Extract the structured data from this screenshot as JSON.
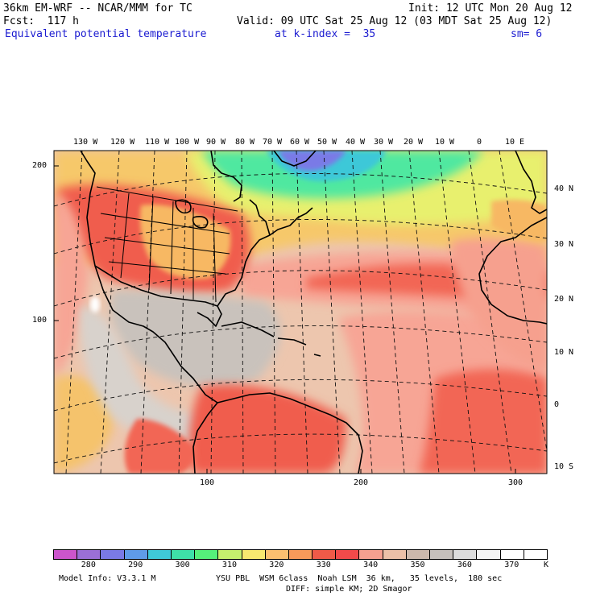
{
  "header": {
    "model_line": "36km EM-WRF -- NCAR/MMM for TC",
    "init_line": "Init: 12 UTC Mon 20 Aug 12",
    "fcst_line": "Fcst:  117 h",
    "valid_line": "Valid: 09 UTC Sat 25 Aug 12 (03 MDT Sat 25 Aug 12)",
    "field_name": "Equivalent potential temperature",
    "level_text": "at k-index =  35",
    "smoothing_text": "sm= 6"
  },
  "map": {
    "lon_labels": [
      "130 W",
      "120 W",
      "110 W",
      "100 W",
      "90 W",
      "80 W",
      "70 W",
      "60 W",
      "50 W",
      "40 W",
      "30 W",
      "20 W",
      "10 W",
      "0",
      "10 E"
    ],
    "lat_labels": [
      "40 N",
      "30 N",
      "20 N",
      "10 N",
      "0",
      "10 S"
    ],
    "y_grid_labels": [
      "200",
      "100"
    ],
    "x_grid_labels": [
      "100",
      "200",
      "300"
    ]
  },
  "colorbar": {
    "colors": [
      "#cc55cc",
      "#9b6fd6",
      "#7a7ae6",
      "#5f9be8",
      "#3fc8d8",
      "#3ee0a8",
      "#55f07a",
      "#c6f06e",
      "#f8e870",
      "#fcc070",
      "#f89a5a",
      "#f05a48",
      "#f24a4a",
      "#f5a090",
      "#ecc0a8",
      "#cdb8ac",
      "#c6c0bc",
      "#dcdcdc",
      "#f4f4f4",
      "#ffffff",
      "#ffffff"
    ],
    "tick_labels": [
      "280",
      "290",
      "300",
      "310",
      "320",
      "330",
      "340",
      "350",
      "360",
      "370"
    ],
    "units": "K"
  },
  "footer": {
    "model_info": "Model Info: V3.3.1 M",
    "physics": "YSU PBL  WSM 6class  Noah LSM  36 km,   35 levels,  180 sec",
    "diffusion": "DIFF: simple KM; 2D Smagor"
  },
  "colors": {
    "accent_blue": "#1a1ad0",
    "ocean_tropical": "#ecc6b0",
    "ocean_warm": "#f7a595",
    "land_hot": "#f06050",
    "cool_north": "#3ee0a8",
    "cold_canada": "#7a7ae6"
  }
}
